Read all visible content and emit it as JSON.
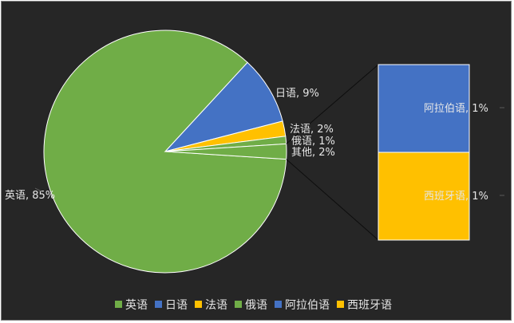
{
  "chart_data": {
    "type": "bar-of-pie",
    "pie": [
      {
        "name": "英语",
        "value": 85,
        "label": "英语, 85%"
      },
      {
        "name": "日语",
        "value": 9,
        "label": "日语, 9%"
      },
      {
        "name": "法语",
        "value": 2,
        "label": "法语, 2%"
      },
      {
        "name": "俄语",
        "value": 1,
        "label": "俄语, 1%"
      },
      {
        "name": "其他",
        "value": 2,
        "label": "其他, 2%"
      }
    ],
    "bar": [
      {
        "name": "阿拉伯语",
        "value": 1,
        "label": "阿拉伯语, 1%"
      },
      {
        "name": "西班牙语",
        "value": 1,
        "label": "西班牙语, 1%"
      }
    ],
    "legend": {
      "position": "bottom",
      "items": [
        "英语",
        "日语",
        "法语",
        "俄语",
        "阿拉伯语",
        "西班牙语"
      ]
    },
    "colors": {
      "英语": "#70ad47",
      "日语": "#4472c4",
      "法语": "#ffc000",
      "俄语": "#70ad47",
      "其他": "#70ad47",
      "阿拉伯语": "#4472c4",
      "西班牙语": "#ffc000"
    }
  }
}
